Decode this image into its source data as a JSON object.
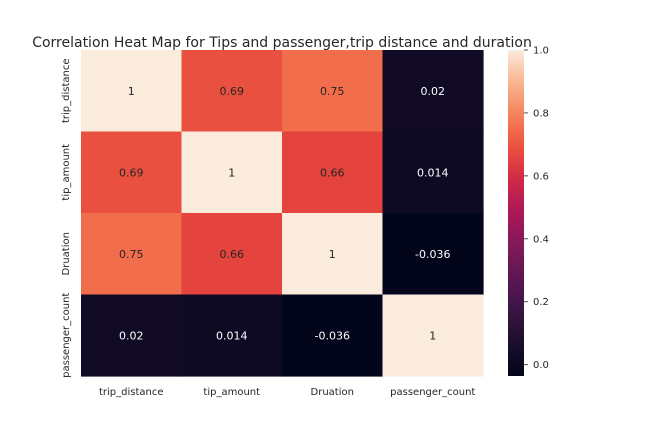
{
  "chart_data": {
    "type": "heatmap",
    "title": "Correlation Heat Map for Tips and passenger,trip distance and duration",
    "row_labels": [
      "trip_distance",
      "tip_amount",
      "Druation",
      "passenger_count"
    ],
    "col_labels": [
      "trip_distance",
      "tip_amount",
      "Druation",
      "passenger_count"
    ],
    "values": [
      [
        1,
        0.69,
        0.75,
        0.02
      ],
      [
        0.69,
        1,
        0.66,
        0.014
      ],
      [
        0.75,
        0.66,
        1,
        -0.036
      ],
      [
        0.02,
        0.014,
        -0.036,
        1
      ]
    ],
    "cell_labels": [
      [
        "1",
        "0.69",
        "0.75",
        "0.02"
      ],
      [
        "0.69",
        "1",
        "0.66",
        "0.014"
      ],
      [
        "0.75",
        "0.66",
        "1",
        "-0.036"
      ],
      [
        "0.02",
        "0.014",
        "-0.036",
        "1"
      ]
    ],
    "colorbar": {
      "min": -0.036,
      "max": 1.0,
      "ticks": [
        0.0,
        0.2,
        0.4,
        0.6,
        0.8,
        1.0
      ],
      "tick_labels": [
        "0.0",
        "0.2",
        "0.4",
        "0.6",
        "0.8",
        "1.0"
      ],
      "colormap": "rocket"
    }
  }
}
